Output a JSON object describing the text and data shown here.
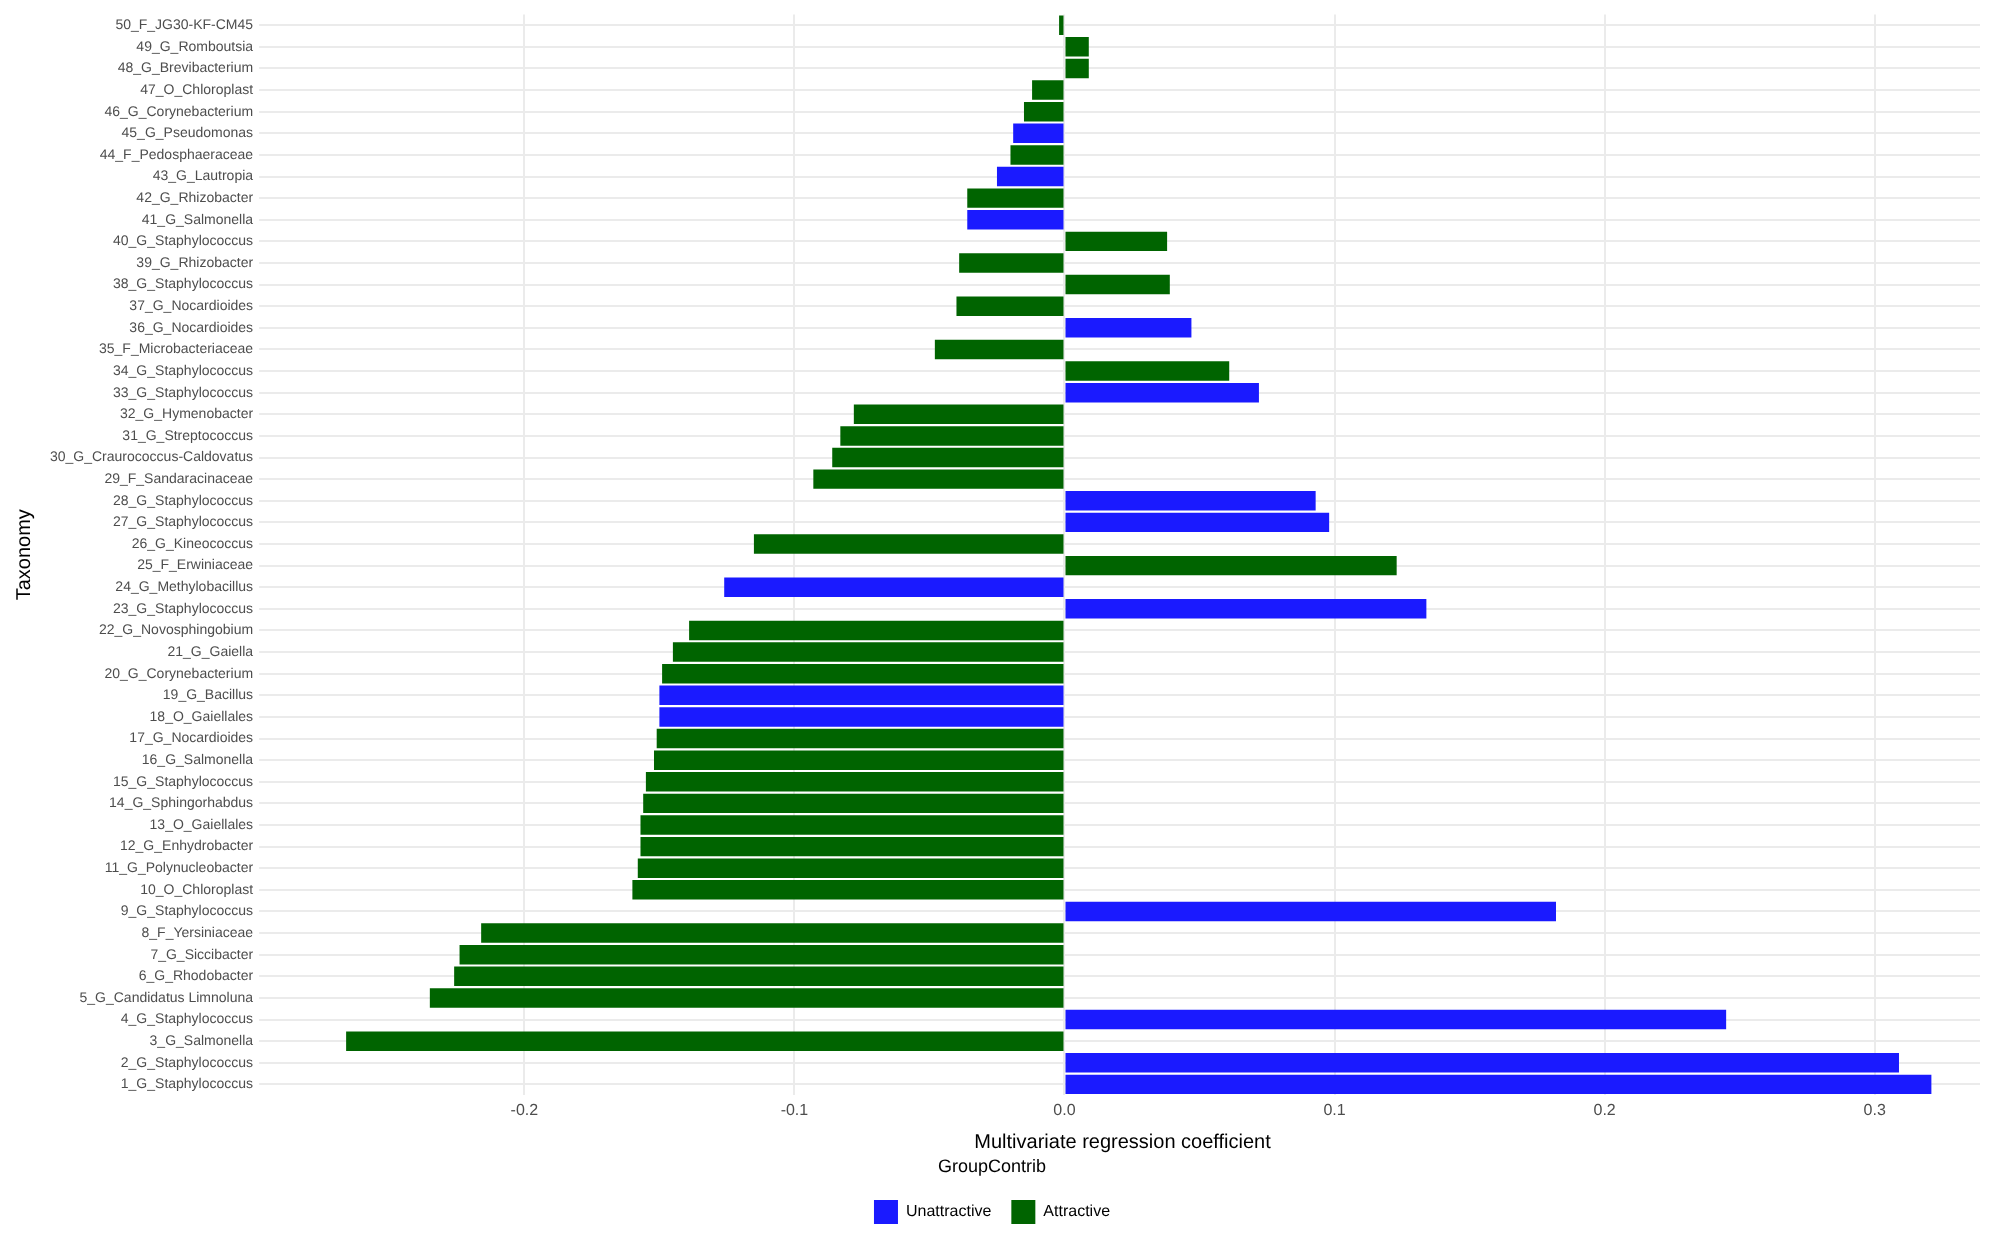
{
  "chart_data": {
    "type": "bar",
    "orientation": "horizontal",
    "xlabel": "Multivariate regression coefficient",
    "ylabel": "Taxonomy",
    "legend_title": "GroupContrib",
    "categories": [
      "50_F_JG30-KF-CM45",
      "49_G_Romboutsia",
      "48_G_Brevibacterium",
      "47_O_Chloroplast",
      "46_G_Corynebacterium",
      "45_G_Pseudomonas",
      "44_F_Pedosphaeraceae",
      "43_G_Lautropia",
      "42_G_Rhizobacter",
      "41_G_Salmonella",
      "40_G_Staphylococcus",
      "39_G_Rhizobacter",
      "38_G_Staphylococcus",
      "37_G_Nocardioides",
      "36_G_Nocardioides",
      "35_F_Microbacteriaceae",
      "34_G_Staphylococcus",
      "33_G_Staphylococcus",
      "32_G_Hymenobacter",
      "31_G_Streptococcus",
      "30_G_Craurococcus-Caldovatus",
      "29_F_Sandaracinaceae",
      "28_G_Staphylococcus",
      "27_G_Staphylococcus",
      "26_G_Kineococcus",
      "25_F_Erwiniaceae",
      "24_G_Methylobacillus",
      "23_G_Staphylococcus",
      "22_G_Novosphingobium",
      "21_G_Gaiella",
      "20_G_Corynebacterium",
      "19_G_Bacillus",
      "18_O_Gaiellales",
      "17_G_Nocardioides",
      "16_G_Salmonella",
      "15_G_Staphylococcus",
      "14_G_Sphingorhabdus",
      "13_O_Gaiellales",
      "12_G_Enhydrobacter",
      "11_G_Polynucleobacter",
      "10_O_Chloroplast",
      "9_G_Staphylococcus",
      "8_F_Yersiniaceae",
      "7_G_Siccibacter",
      "6_G_Rhodobacter",
      "5_G_Candidatus Limnoluna",
      "4_G_Staphylococcus",
      "3_G_Salmonella",
      "2_G_Staphylococcus",
      "1_G_Staphylococcus"
    ],
    "series": [
      {
        "name": "Unattractive",
        "color": "#1a1aff",
        "values": [
          null,
          null,
          null,
          null,
          null,
          -0.019,
          null,
          -0.025,
          null,
          -0.036,
          null,
          null,
          null,
          null,
          0.047,
          null,
          null,
          0.072,
          null,
          null,
          null,
          null,
          0.093,
          0.098,
          null,
          null,
          -0.126,
          0.134,
          null,
          null,
          null,
          -0.15,
          -0.15,
          null,
          null,
          null,
          null,
          null,
          null,
          null,
          null,
          0.182,
          null,
          null,
          null,
          null,
          0.245,
          null,
          0.309,
          0.321
        ]
      },
      {
        "name": "Attractive",
        "color": "#006400",
        "values": [
          -0.002,
          0.009,
          0.009,
          -0.012,
          -0.015,
          null,
          -0.02,
          null,
          -0.036,
          null,
          0.038,
          -0.039,
          0.039,
          -0.04,
          null,
          -0.048,
          0.061,
          null,
          -0.078,
          -0.083,
          -0.086,
          -0.093,
          null,
          null,
          -0.115,
          0.123,
          null,
          null,
          -0.139,
          -0.145,
          -0.149,
          null,
          null,
          -0.151,
          -0.152,
          -0.155,
          -0.156,
          -0.157,
          -0.157,
          -0.158,
          -0.16,
          null,
          -0.216,
          -0.224,
          -0.226,
          -0.235,
          null,
          -0.266,
          null,
          null
        ]
      }
    ],
    "xlim": [
      -0.296,
      0.339
    ],
    "xticks": [
      {
        "value": -0.2,
        "label": "-0.2"
      },
      {
        "value": -0.1,
        "label": "-0.1"
      },
      {
        "value": 0,
        "label": "0.0"
      },
      0.1,
      0.2,
      0.3
    ],
    "grid": true,
    "legend": "bottom"
  }
}
